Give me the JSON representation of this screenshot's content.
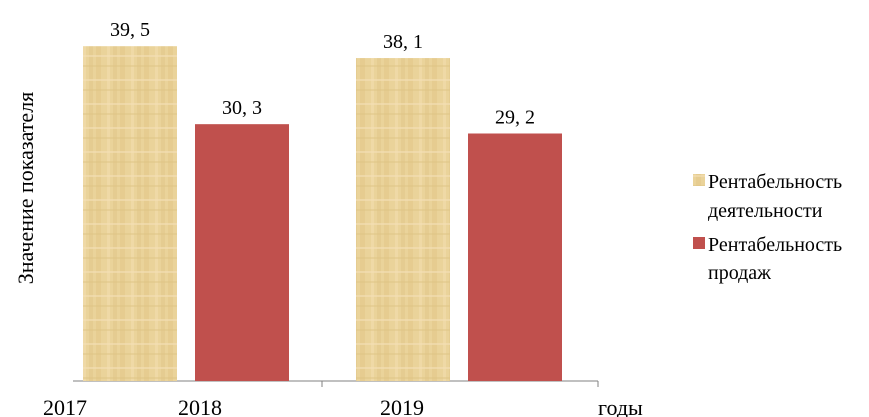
{
  "chart_data": {
    "type": "bar",
    "title": "",
    "ylabel": "Значение показателя",
    "xlabel": "годы",
    "ylim": [
      0,
      42
    ],
    "groups": [
      {
        "tick": "2018",
        "values": [
          39.5,
          30.3
        ],
        "labels": [
          "39, 5",
          "30, 3"
        ]
      },
      {
        "tick": "2019",
        "values": [
          38.1,
          29.2
        ],
        "labels": [
          "38, 1",
          "29, 2"
        ]
      }
    ],
    "x_tick_labels": [
      "2017",
      "2018",
      "2019"
    ],
    "series": [
      {
        "name": "Рентабельность деятельности",
        "legend_lines": [
          "Рентабельность",
          "деятельности"
        ],
        "color": "#e8cf94",
        "texture": "papyrus"
      },
      {
        "name": "Рентабельность продаж",
        "legend_lines": [
          "Рентабельность",
          "продаж"
        ],
        "color": "#c0504d"
      }
    ],
    "legend_position": "right",
    "grid": false
  }
}
